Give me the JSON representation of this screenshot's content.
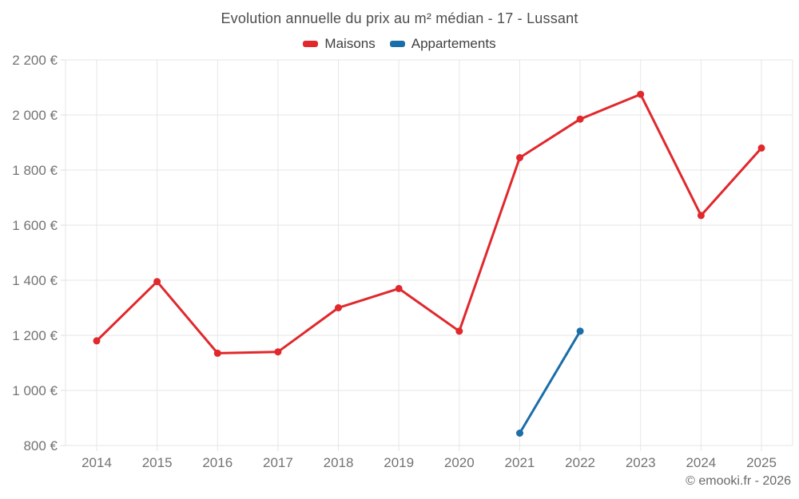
{
  "chart_data": {
    "type": "line",
    "title": "Evolution annuelle du prix au m² médian - 17 - Lussant",
    "xlabel": "",
    "ylabel": "",
    "currency": "€",
    "grid": true,
    "legend_position": "top",
    "categories": [
      "2014",
      "2015",
      "2016",
      "2017",
      "2018",
      "2019",
      "2020",
      "2021",
      "2022",
      "2023",
      "2024",
      "2025"
    ],
    "series": [
      {
        "name": "Maisons",
        "color": "#e0282d",
        "x": [
          "2014",
          "2015",
          "2016",
          "2017",
          "2018",
          "2019",
          "2020",
          "2021",
          "2022",
          "2023",
          "2024",
          "2025"
        ],
        "values": [
          1180,
          1395,
          1135,
          1140,
          1300,
          1370,
          1215,
          1845,
          1985,
          2075,
          1635,
          1880
        ]
      },
      {
        "name": "Appartements",
        "color": "#1b6ea8",
        "x": [
          "2021",
          "2022"
        ],
        "values": [
          845,
          1215
        ]
      }
    ],
    "ylim": [
      800,
      2200
    ],
    "y_ticks": [
      800,
      1000,
      1200,
      1400,
      1600,
      1800,
      2000,
      2200
    ],
    "y_tick_labels": [
      "800 €",
      "1 000 €",
      "1 200 €",
      "1 400 €",
      "1 600 €",
      "1 800 €",
      "2 000 €",
      "2 200 €"
    ]
  },
  "footer": {
    "credit": "© emooki.fr - 2026"
  }
}
